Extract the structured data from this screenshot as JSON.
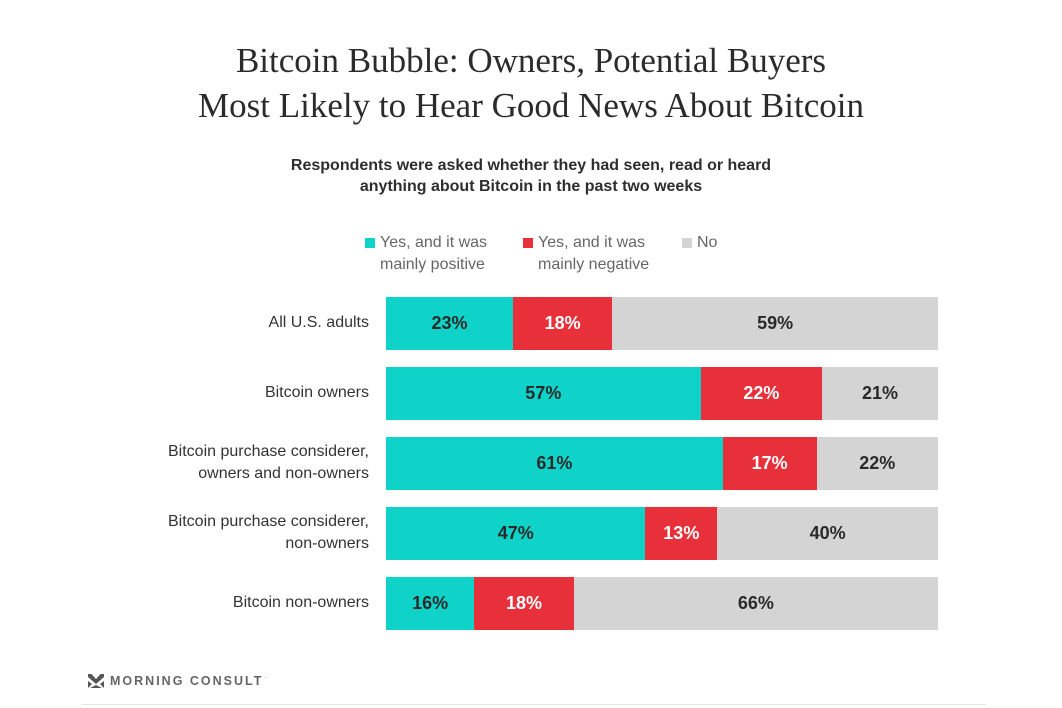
{
  "title": {
    "line1": "Bitcoin Bubble: Owners, Potential Buyers",
    "line2": "Most Likely to Hear Good News About Bitcoin"
  },
  "subtitle": {
    "line1": "Respondents were asked whether they had seen, read or heard",
    "line2": "anything about Bitcoin in the past two weeks"
  },
  "footer": {
    "brand": "MORNING CONSULT",
    "brand_mark": "·",
    "logo_icon": "morning-consult-logo-icon"
  },
  "chart_data": {
    "type": "bar",
    "orientation": "horizontal",
    "stacked": true,
    "title": "Bitcoin Bubble: Owners, Potential Buyers Most Likely to Hear Good News About Bitcoin",
    "subtitle": "Respondents were asked whether they had seen, read or heard anything about Bitcoin in the past two weeks",
    "xlabel": "",
    "ylabel": "",
    "xlim": [
      0,
      100
    ],
    "grid": false,
    "legend_position": "top-center",
    "unit": "%",
    "categories": [
      "All U.S. adults",
      "Bitcoin owners",
      "Bitcoin purchase considerer,\nowners and non-owners",
      "Bitcoin purchase considerer,\nnon-owners",
      "Bitcoin non-owners"
    ],
    "series": [
      {
        "name": "Yes, and it was mainly positive",
        "legend_lines": [
          "Yes, and it was",
          "mainly positive"
        ],
        "color": "#0fd3c8",
        "label_color": "#2a2a2a",
        "values": [
          23,
          57,
          61,
          47,
          16
        ]
      },
      {
        "name": "Yes, and it was mainly negative",
        "legend_lines": [
          "Yes, and it was",
          "mainly negative"
        ],
        "color": "#e8303a",
        "label_color": "#ffffff",
        "values": [
          18,
          22,
          17,
          13,
          18
        ]
      },
      {
        "name": "No",
        "legend_lines": [
          "No"
        ],
        "color": "#d4d4d4",
        "label_color": "#2a2a2a",
        "values": [
          59,
          21,
          22,
          40,
          66
        ]
      }
    ]
  }
}
